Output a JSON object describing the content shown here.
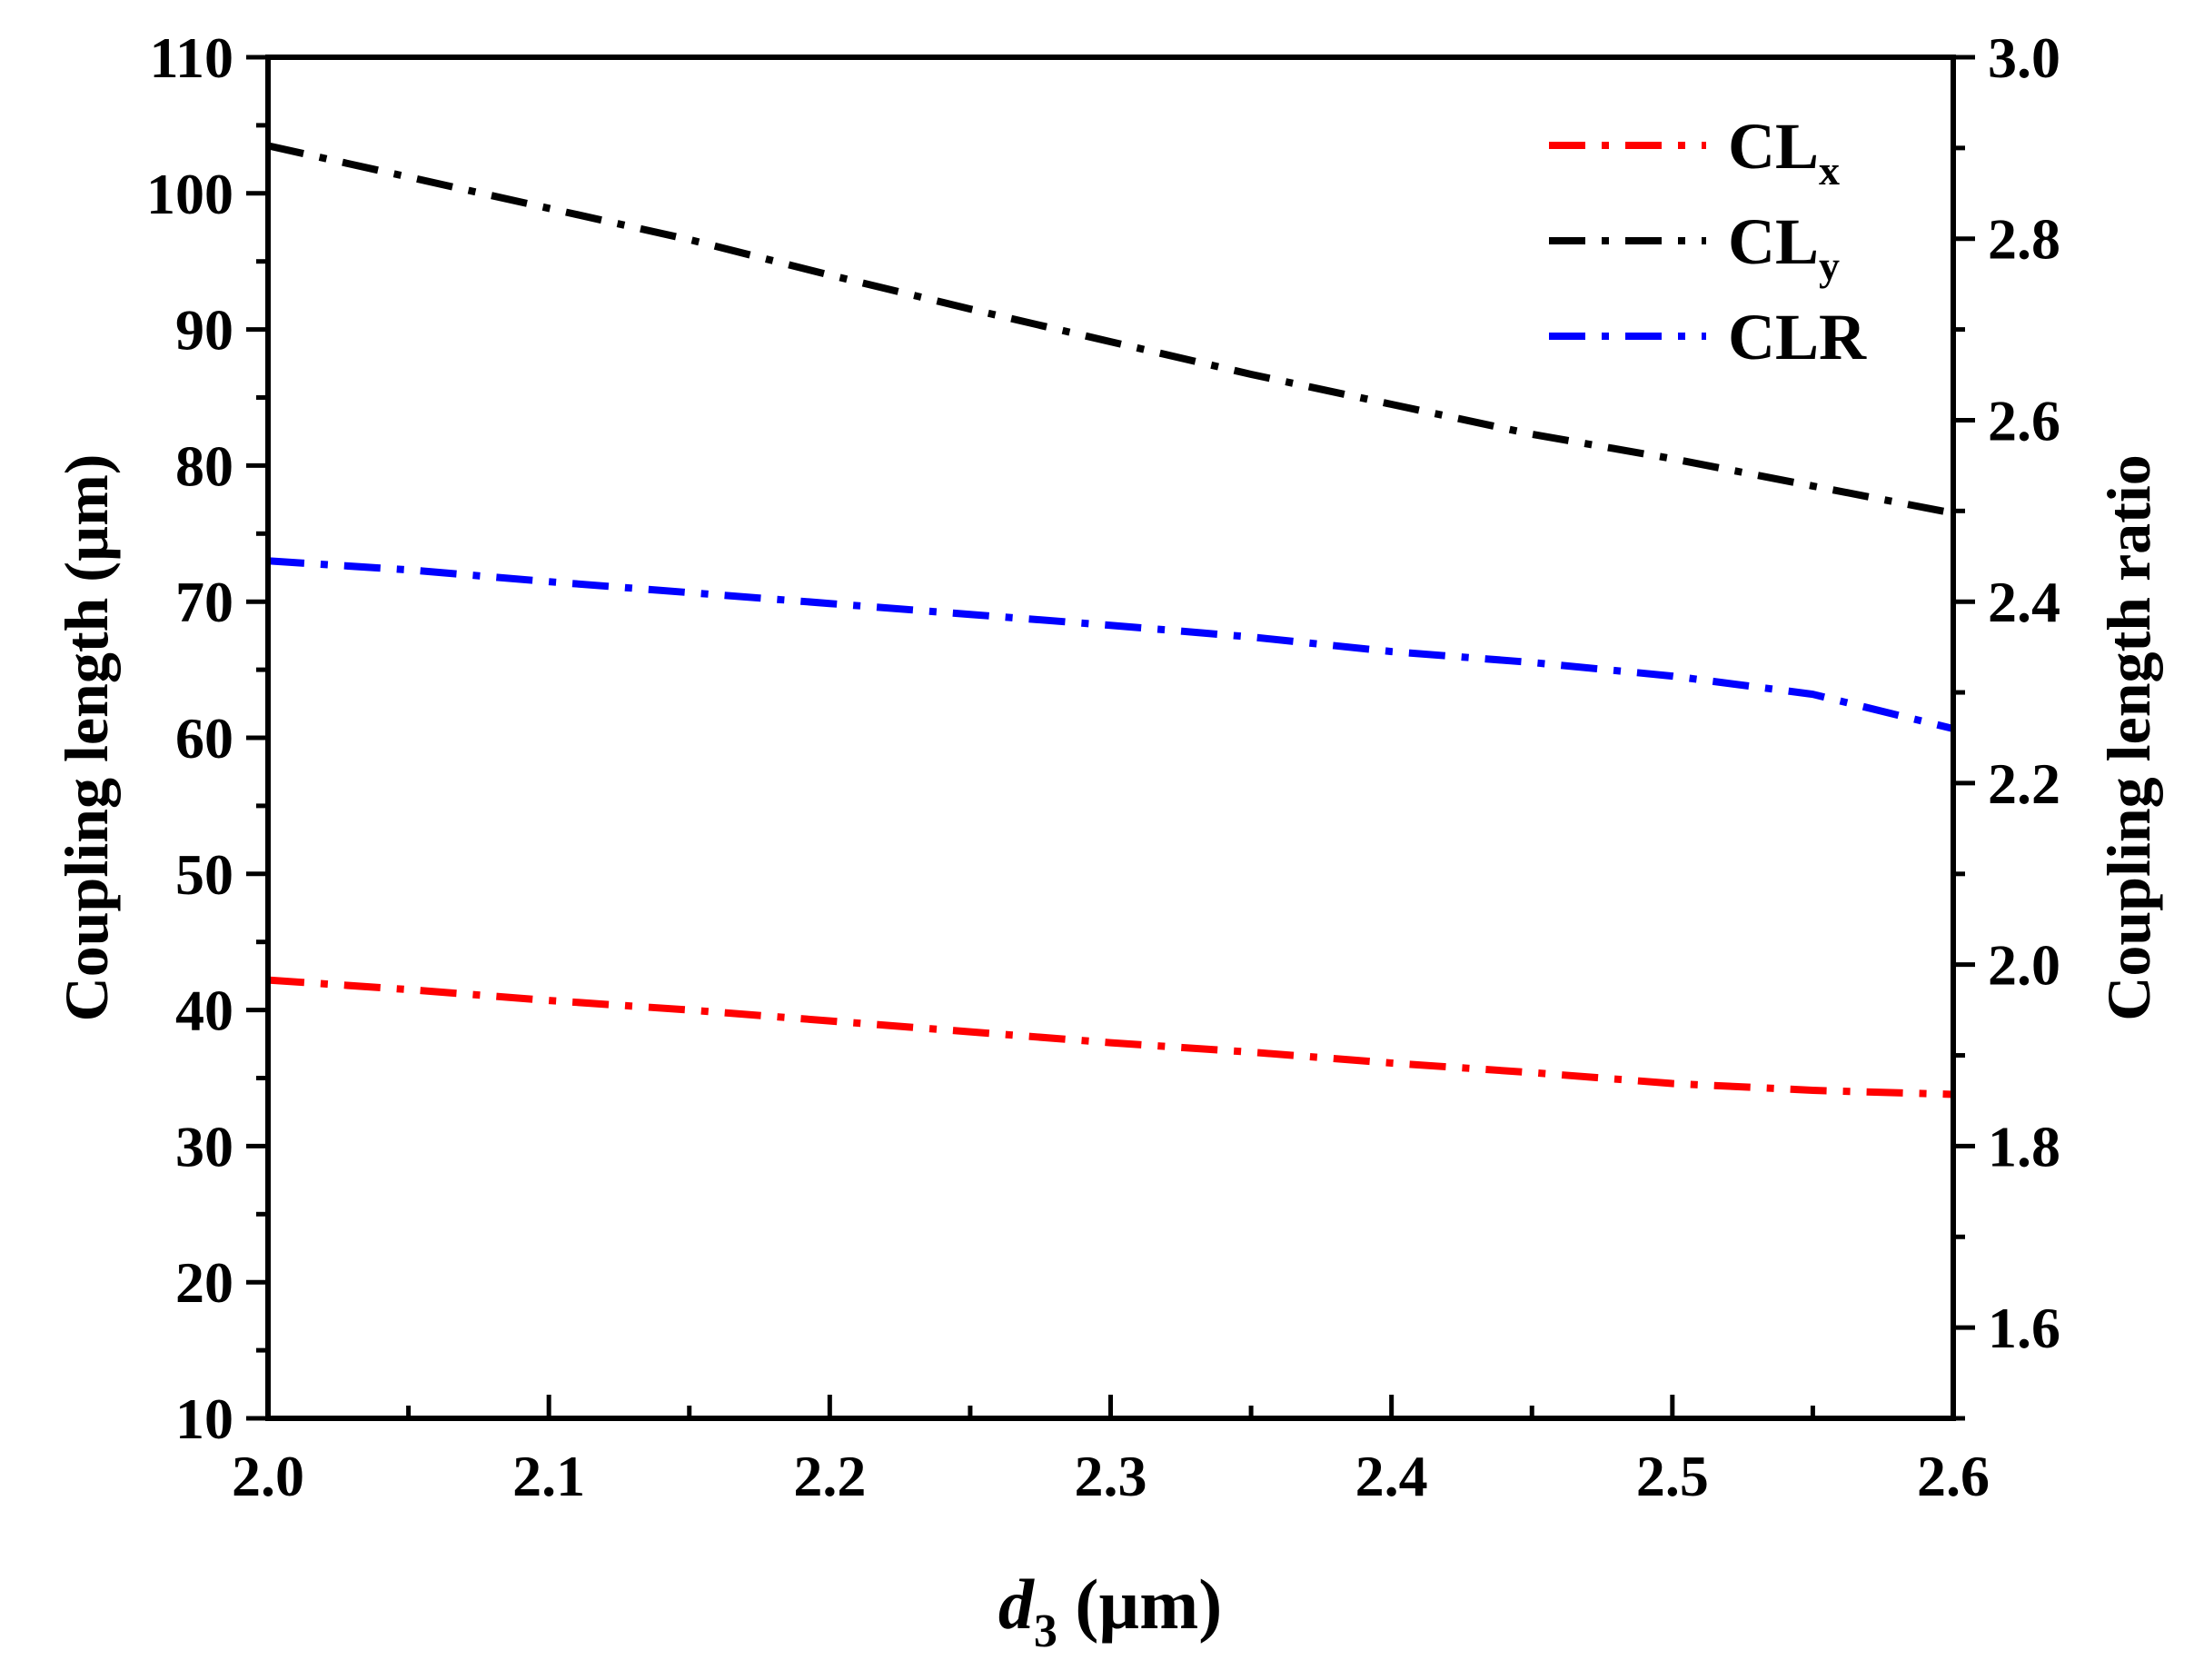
{
  "chart_data": {
    "type": "line",
    "title": "",
    "xlabel": {
      "italic": "d",
      "sub": "3",
      "rest": " (µm)"
    },
    "ylabel_left": "Coupling length (µm)",
    "ylabel_right": "Coupling length ratio",
    "xlim": [
      2.0,
      2.6
    ],
    "ylim_left": [
      10,
      110
    ],
    "ylim_right": [
      1.5,
      3.0
    ],
    "x_ticks": [
      "2.0",
      "2.1",
      "2.2",
      "2.3",
      "2.4",
      "2.5",
      "2.6"
    ],
    "y_left_ticks": [
      "10",
      "20",
      "30",
      "40",
      "50",
      "60",
      "70",
      "80",
      "90",
      "100",
      "110"
    ],
    "y_right_ticks": [
      "1.6",
      "1.8",
      "2.0",
      "2.2",
      "2.4",
      "2.6",
      "2.8",
      "3.0"
    ],
    "legend_position": "top-right",
    "series": [
      {
        "name": "CLx",
        "label_main": "CL",
        "label_sub": "x",
        "color": "#ff0000",
        "axis": "left",
        "x": [
          2.0,
          2.05,
          2.1,
          2.15,
          2.2,
          2.25,
          2.3,
          2.35,
          2.4,
          2.45,
          2.5,
          2.55,
          2.6
        ],
        "y": [
          42.2,
          41.5,
          40.7,
          40.0,
          39.2,
          38.4,
          37.6,
          36.9,
          36.1,
          35.4,
          34.6,
          34.1,
          33.8
        ]
      },
      {
        "name": "CLy",
        "label_main": "CL",
        "label_sub": "y",
        "color": "#000000",
        "axis": "left",
        "x": [
          2.0,
          2.05,
          2.1,
          2.15,
          2.2,
          2.25,
          2.3,
          2.35,
          2.4,
          2.45,
          2.5,
          2.55,
          2.6
        ],
        "y": [
          103.5,
          101.2,
          98.9,
          96.6,
          94.0,
          91.5,
          89.1,
          86.7,
          84.5,
          82.3,
          80.5,
          78.5,
          76.5
        ]
      },
      {
        "name": "CLR",
        "label_main": "CLR",
        "label_sub": "",
        "color": "#0000ff",
        "axis": "right",
        "x": [
          2.0,
          2.05,
          2.1,
          2.15,
          2.2,
          2.25,
          2.3,
          2.35,
          2.4,
          2.45,
          2.5,
          2.55,
          2.6
        ],
        "y": [
          2.445,
          2.435,
          2.422,
          2.41,
          2.398,
          2.386,
          2.374,
          2.361,
          2.345,
          2.333,
          2.318,
          2.298,
          2.26
        ]
      }
    ]
  }
}
